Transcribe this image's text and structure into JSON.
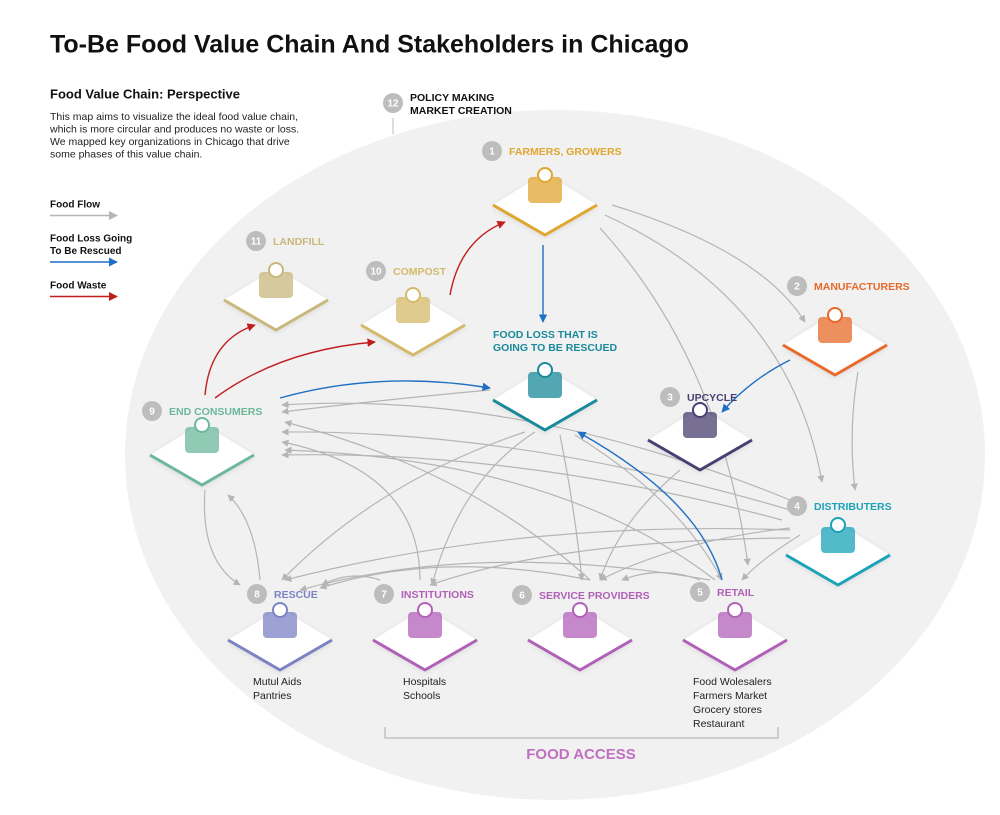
{
  "title": "To-Be Food Value Chain And Stakeholders in Chicago",
  "perspective": {
    "heading": "Food Value Chain: Perspective",
    "lines": [
      "This map aims to visualize the ideal food value chain,",
      "which is more circular and produces no waste or loss.",
      "We mapped key organizations in Chicago that drive",
      "some phases of this value chain."
    ]
  },
  "legend": [
    {
      "lines": [
        "Food Flow"
      ],
      "color": "#b5b5b5"
    },
    {
      "lines": [
        "Food Loss Going",
        "To Be Rescued"
      ],
      "color": "#1f6fc4"
    },
    {
      "lines": [
        "Food Waste"
      ],
      "color": "#c01e1e"
    }
  ],
  "policy": {
    "number": 12,
    "lines": [
      "POLICY MAKING",
      "MARKET CREATION"
    ]
  },
  "nodes": [
    {
      "number": 1,
      "label": "FARMERS, GROWERS",
      "color": "#e0a630"
    },
    {
      "number": 2,
      "label": "MANUFACTURERS",
      "color": "#e8692a"
    },
    {
      "number": 3,
      "label": "UPCYCLE",
      "color": "#4b3f72"
    },
    {
      "number": 4,
      "label": "DISTRIBUTERS",
      "color": "#1aa3b8"
    },
    {
      "number": 5,
      "label": "RETAIL",
      "color": "#b160b8",
      "details": [
        "Food Wolesalers",
        "Farmers Market",
        "Grocery stores",
        "Restaurant"
      ]
    },
    {
      "number": 6,
      "label": "SERVICE PROVIDERS",
      "color": "#b160b8"
    },
    {
      "number": 7,
      "label": "INSTITUTIONS",
      "color": "#b160b8",
      "details": [
        "Hospitals",
        "Schools"
      ]
    },
    {
      "number": 8,
      "label": "RESCUE",
      "color": "#7b83c4",
      "details": [
        "Mutul Aids",
        "Pantries"
      ]
    },
    {
      "number": 9,
      "label": "END CONSUMERS",
      "color": "#6cb89b"
    },
    {
      "number": 10,
      "label": "COMPOST",
      "color": "#d5b96a"
    },
    {
      "number": 11,
      "label": "LANDFILL",
      "color": "#c9b77e"
    }
  ],
  "food_loss": {
    "lines": [
      "FOOD LOSS THAT IS",
      "GOING TO BE RESCUED"
    ],
    "color": "#1a8a9a"
  },
  "food_access": "FOOD ACCESS"
}
